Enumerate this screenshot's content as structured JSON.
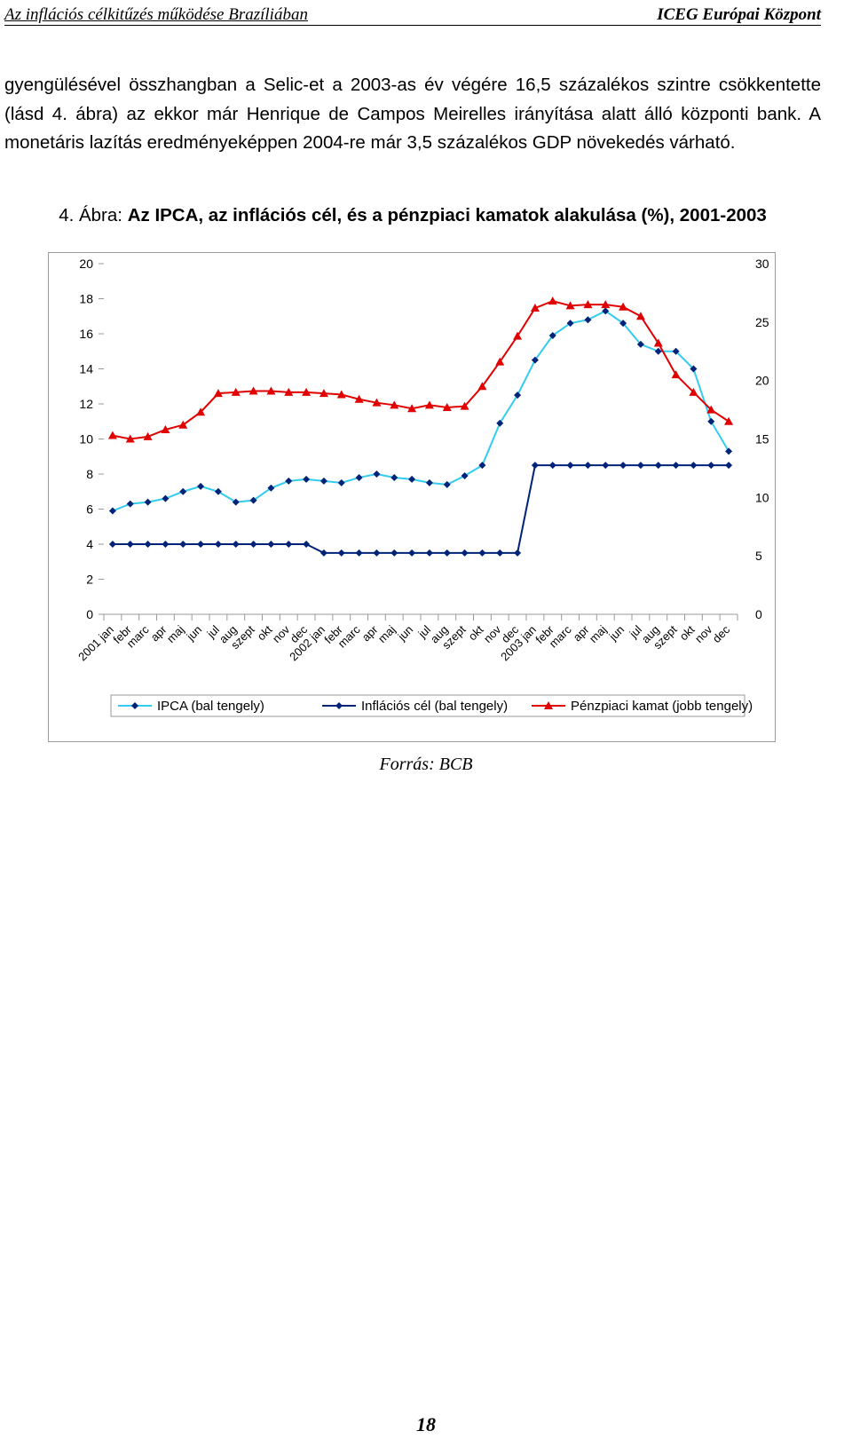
{
  "header": {
    "left": "Az inflációs célkitűzés működése Brazíliában",
    "right": "ICEG Európai Központ"
  },
  "paragraph": "gyengülésével összhangban a Selic-et a 2003-as év végére 16,5 százalékos szintre csökkentette (lásd 4. ábra) az ekkor már Henrique de Campos Meirelles irányítása alatt álló központi bank. A monetáris lazítás eredményeképpen 2004-re már 3,5 százalékos GDP növekedés várható.",
  "figure": {
    "number": "4. Ábra:",
    "title": "Az IPCA, az inflációs cél, és a pénzpiaci kamatok alakulása (%), 2001-2003"
  },
  "chart_data": {
    "type": "line",
    "categories": [
      "2001 jan",
      "febr",
      "marc",
      "apr",
      "maj",
      "jun",
      "jul",
      "aug",
      "szept",
      "okt",
      "nov",
      "dec",
      "2002 jan",
      "febr",
      "marc",
      "apr",
      "maj",
      "jun",
      "jul",
      "aug",
      "szept",
      "okt",
      "nov",
      "dec",
      "2003 jan",
      "febr",
      "marc",
      "apr",
      "maj",
      "jun",
      "jul",
      "aug",
      "szept",
      "okt",
      "nov",
      "dec"
    ],
    "left_axis": {
      "min": 0,
      "max": 20,
      "ticks": [
        0,
        2,
        4,
        6,
        8,
        10,
        12,
        14,
        16,
        18,
        20
      ]
    },
    "right_axis": {
      "min": 0,
      "max": 30,
      "ticks": [
        0,
        5,
        10,
        15,
        20,
        25,
        30
      ]
    },
    "series": [
      {
        "name": "IPCA (bal tengely)",
        "axis": "left",
        "color": "#33ccee",
        "marker": "diamond",
        "values": [
          5.9,
          6.3,
          6.4,
          6.6,
          7.0,
          7.3,
          7.0,
          6.4,
          6.5,
          7.2,
          7.6,
          7.7,
          7.6,
          7.5,
          7.8,
          8.0,
          7.8,
          7.7,
          7.5,
          7.4,
          7.9,
          8.5,
          10.9,
          12.5,
          14.5,
          15.9,
          16.6,
          16.8,
          17.3,
          16.6,
          15.4,
          15.0,
          15.0,
          14.0,
          11.0,
          9.3
        ]
      },
      {
        "name": "Inflációs cél (bal tengely)",
        "axis": "left",
        "color": "#00237a",
        "marker": "diamond",
        "values": [
          4.0,
          4.0,
          4.0,
          4.0,
          4.0,
          4.0,
          4.0,
          4.0,
          4.0,
          4.0,
          4.0,
          4.0,
          3.5,
          3.5,
          3.5,
          3.5,
          3.5,
          3.5,
          3.5,
          3.5,
          3.5,
          3.5,
          3.5,
          3.5,
          8.5,
          8.5,
          8.5,
          8.5,
          8.5,
          8.5,
          8.5,
          8.5,
          8.5,
          8.5,
          8.5,
          8.5
        ]
      },
      {
        "name": "Pénzpiaci kamat (jobb tengely)",
        "axis": "right",
        "color": "#e00000",
        "marker": "triangle",
        "values": [
          15.3,
          15.0,
          15.2,
          15.8,
          16.2,
          17.3,
          18.9,
          19.0,
          19.1,
          19.1,
          19.0,
          19.0,
          18.9,
          18.8,
          18.4,
          18.1,
          17.9,
          17.6,
          17.9,
          17.7,
          17.8,
          19.5,
          21.6,
          23.8,
          26.2,
          26.8,
          26.4,
          26.5,
          26.5,
          26.3,
          25.5,
          23.2,
          20.5,
          19.0,
          17.5,
          16.5
        ]
      }
    ],
    "legend_position": "bottom",
    "grid": false
  },
  "source": "Forrás: BCB",
  "page_number": "18"
}
